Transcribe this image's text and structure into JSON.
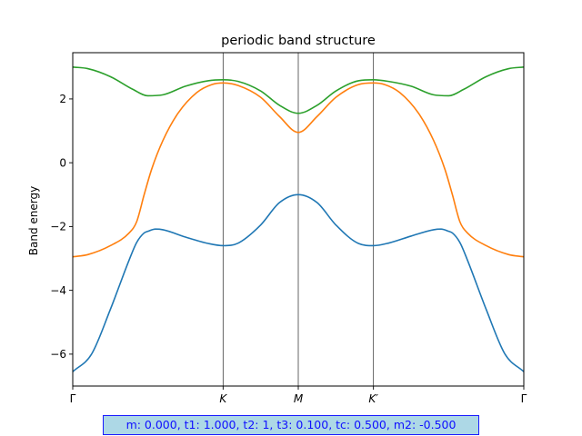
{
  "chart_data": {
    "type": "line",
    "title": "periodic band structure",
    "xlabel": "",
    "ylabel": "Band energy",
    "xlim": [
      0,
      6
    ],
    "ylim": [
      -7.0,
      3.45
    ],
    "x_ticks": [
      {
        "x": 0,
        "label": "Γ",
        "italic": false
      },
      {
        "x": 2,
        "label": "K",
        "italic": true
      },
      {
        "x": 3,
        "label": "M",
        "italic": true
      },
      {
        "x": 4,
        "label": "K′",
        "italic": true
      },
      {
        "x": 6,
        "label": "Γ",
        "italic": false
      }
    ],
    "vertical_lines": [
      2,
      3,
      4
    ],
    "y_ticks": [
      {
        "value": 2,
        "label": "2"
      },
      {
        "value": 0,
        "label": "0"
      },
      {
        "value": -2,
        "label": "−2"
      },
      {
        "value": -4,
        "label": "−4"
      },
      {
        "value": -6,
        "label": "−6"
      }
    ],
    "grid": false,
    "legend": "none",
    "series": [
      {
        "color": "#1f77b4",
        "x": [
          0,
          0.25,
          0.5,
          0.75,
          0.85,
          0.95,
          1.0,
          1.1,
          1.2,
          1.5,
          1.8,
          2.0,
          2.2,
          2.5,
          2.75,
          3.0,
          3.25,
          3.5,
          3.8,
          4.0,
          4.2,
          4.5,
          4.8,
          4.9,
          5.0,
          5.05,
          5.15,
          5.25,
          5.5,
          5.75,
          6.0
        ],
        "values": [
          -6.55,
          -6.0,
          -4.6,
          -3.05,
          -2.5,
          -2.2,
          -2.15,
          -2.08,
          -2.1,
          -2.33,
          -2.53,
          -2.6,
          -2.52,
          -1.95,
          -1.25,
          -1.0,
          -1.25,
          -1.95,
          -2.53,
          -2.6,
          -2.52,
          -2.3,
          -2.1,
          -2.08,
          -2.15,
          -2.2,
          -2.5,
          -3.05,
          -4.6,
          -6.0,
          -6.55
        ]
      },
      {
        "color": "#ff7f0e",
        "x": [
          0,
          0.2,
          0.5,
          0.75,
          0.85,
          0.95,
          1.05,
          1.2,
          1.4,
          1.65,
          1.85,
          2.0,
          2.2,
          2.5,
          2.75,
          3.0,
          3.25,
          3.5,
          3.8,
          4.0,
          4.15,
          4.35,
          4.6,
          4.8,
          4.95,
          5.05,
          5.15,
          5.25,
          5.5,
          5.8,
          6.0
        ],
        "values": [
          -2.95,
          -2.88,
          -2.6,
          -2.2,
          -1.85,
          -1.0,
          -0.2,
          0.7,
          1.55,
          2.2,
          2.45,
          2.5,
          2.42,
          2.05,
          1.45,
          0.95,
          1.45,
          2.05,
          2.45,
          2.5,
          2.45,
          2.2,
          1.55,
          0.7,
          -0.2,
          -1.0,
          -1.85,
          -2.2,
          -2.6,
          -2.88,
          -2.95
        ]
      },
      {
        "color": "#2ca02c",
        "x": [
          0,
          0.2,
          0.5,
          0.8,
          1.0,
          1.2,
          1.5,
          1.8,
          2.0,
          2.2,
          2.5,
          2.75,
          3.0,
          3.25,
          3.5,
          3.8,
          4.0,
          4.2,
          4.5,
          4.8,
          5.0,
          5.2,
          5.5,
          5.8,
          6.0
        ],
        "values": [
          3.0,
          2.95,
          2.7,
          2.3,
          2.1,
          2.13,
          2.4,
          2.57,
          2.6,
          2.55,
          2.25,
          1.8,
          1.55,
          1.8,
          2.25,
          2.57,
          2.6,
          2.55,
          2.4,
          2.13,
          2.1,
          2.3,
          2.7,
          2.95,
          3.0
        ]
      }
    ]
  },
  "parameters_text": "m: 0.000, t1: 1.000, t2: 1, t3: 0.100, tc: 0.500, m2: -0.500",
  "colors": {
    "param_box_bg": "#add8e6",
    "param_box_text": "#0000ff",
    "vertical_line": "#404040"
  }
}
